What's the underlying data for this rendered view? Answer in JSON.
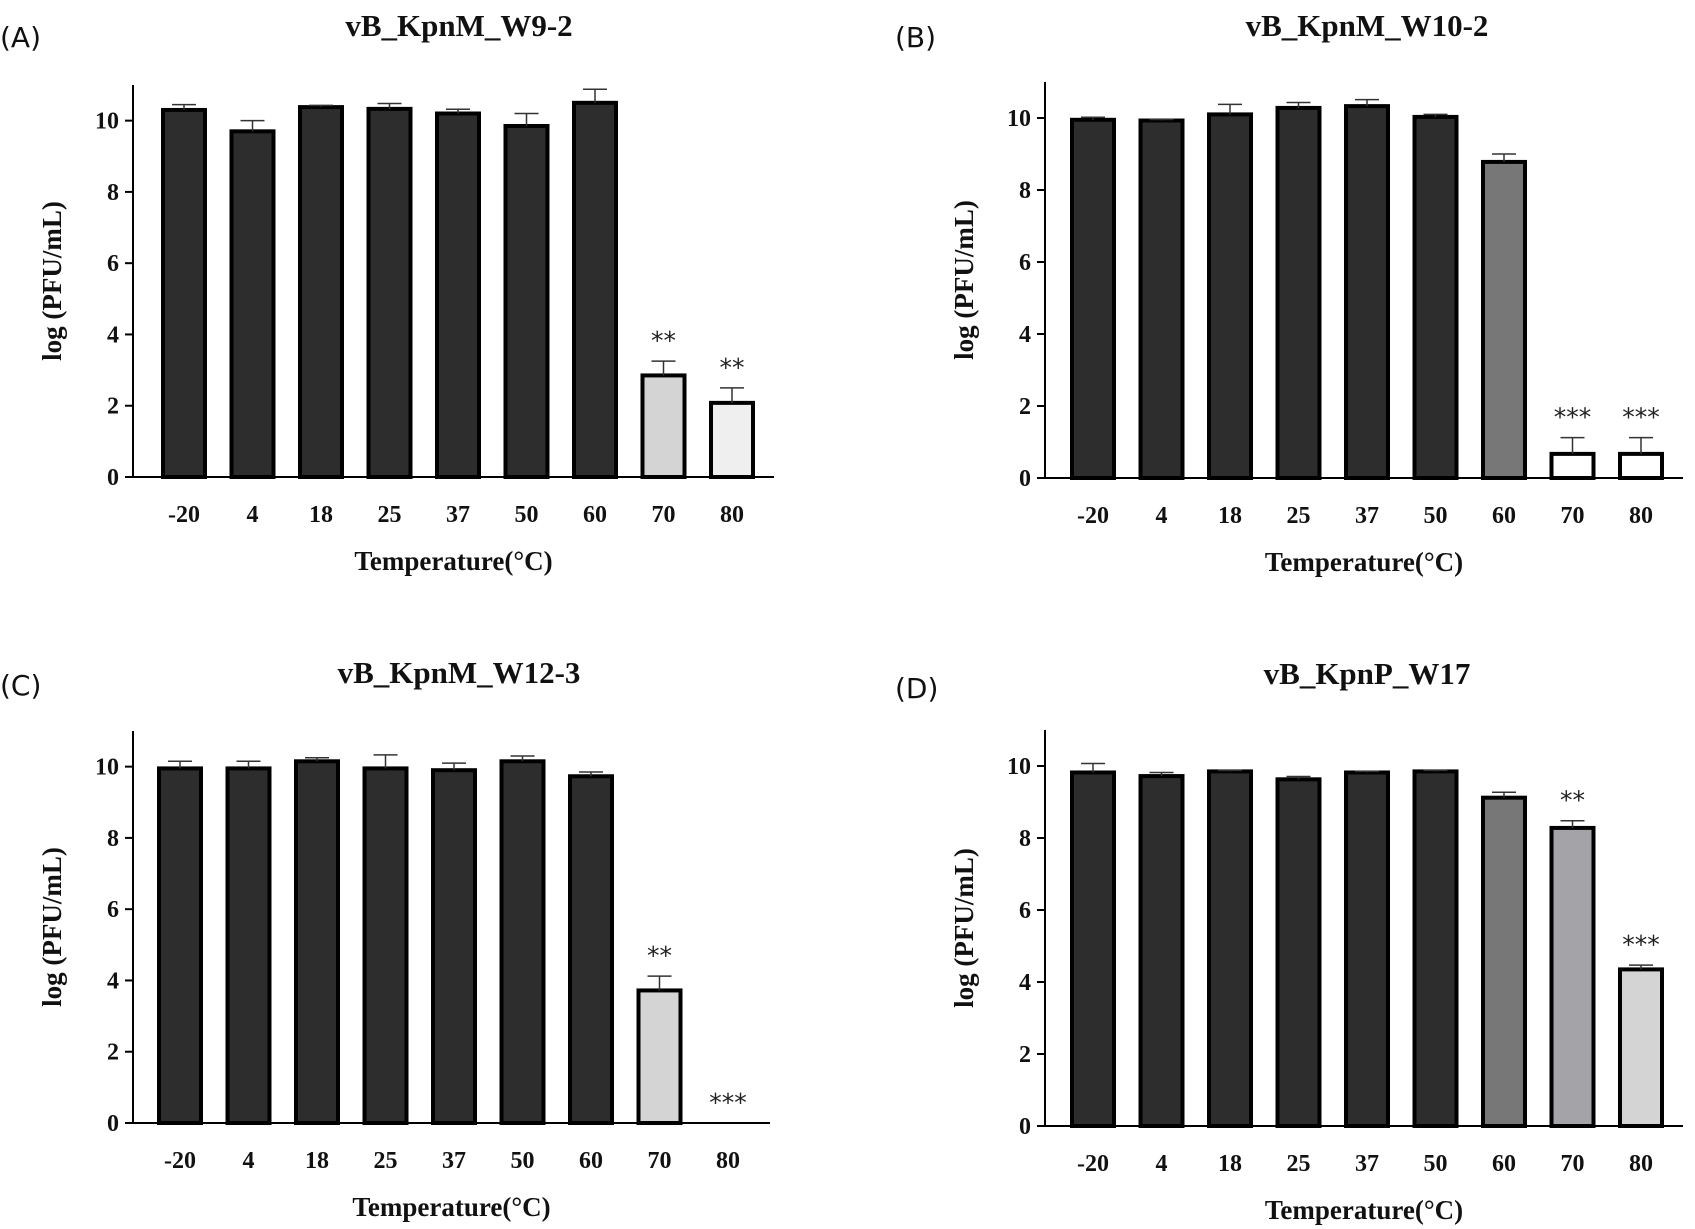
{
  "figure": {
    "palette": {
      "dark": "#2d2d2d",
      "mid": "#777777",
      "grey": "#a4a4a8",
      "light": "#d4d4d4",
      "lighter": "#efefef",
      "white": "#ffffff",
      "stroke": "#000000"
    }
  },
  "chart_data": [
    {
      "panel": "(A)",
      "type": "bar",
      "title": "vB_KpnM_W9-2",
      "xlabel": "Temperature(°C)",
      "ylabel": "log (PFU/mL)",
      "ylim": [
        0,
        11
      ],
      "yticks": [
        0,
        2,
        4,
        6,
        8,
        10
      ],
      "categories": [
        "-20",
        "4",
        "18",
        "25",
        "37",
        "50",
        "60",
        "70",
        "80"
      ],
      "values": [
        10.3,
        9.7,
        10.38,
        10.33,
        10.2,
        9.85,
        10.5,
        2.85,
        2.08
      ],
      "errors": [
        0.15,
        0.3,
        0.05,
        0.15,
        0.12,
        0.35,
        0.38,
        0.4,
        0.42
      ],
      "colors": [
        "dark",
        "dark",
        "dark",
        "dark",
        "dark",
        "dark",
        "dark",
        "light",
        "lighter"
      ],
      "significance": [
        "",
        "",
        "",
        "",
        "",
        "",
        "",
        "**",
        "**"
      ]
    },
    {
      "panel": "(B)",
      "type": "bar",
      "title": "vB_KpnM_W10-2",
      "xlabel": "Temperature(°C)",
      "ylabel": "log (PFU/mL)",
      "ylim": [
        0,
        11
      ],
      "yticks": [
        0,
        2,
        4,
        6,
        8,
        10
      ],
      "categories": [
        "-20",
        "4",
        "18",
        "25",
        "37",
        "50",
        "60",
        "70",
        "80"
      ],
      "values": [
        9.95,
        9.93,
        10.1,
        10.28,
        10.33,
        10.03,
        8.78,
        0.67,
        0.67
      ],
      "errors": [
        0.07,
        0.03,
        0.28,
        0.15,
        0.18,
        0.07,
        0.22,
        0.45,
        0.45
      ],
      "colors": [
        "dark",
        "dark",
        "dark",
        "dark",
        "dark",
        "dark",
        "mid",
        "white",
        "white"
      ],
      "significance": [
        "",
        "",
        "",
        "",
        "",
        "",
        "",
        "***",
        "***"
      ]
    },
    {
      "panel": "(C)",
      "type": "bar",
      "title": "vB_KpnM_W12-3",
      "xlabel": "Temperature(°C)",
      "ylabel": "log (PFU/mL)",
      "ylim": [
        0,
        11
      ],
      "yticks": [
        0,
        2,
        4,
        6,
        8,
        10
      ],
      "categories": [
        "-20",
        "4",
        "18",
        "25",
        "37",
        "50",
        "60",
        "70",
        "80"
      ],
      "values": [
        9.95,
        9.95,
        10.15,
        9.95,
        9.9,
        10.15,
        9.73,
        3.72,
        0
      ],
      "errors": [
        0.2,
        0.2,
        0.1,
        0.38,
        0.2,
        0.15,
        0.12,
        0.4,
        0
      ],
      "colors": [
        "dark",
        "dark",
        "dark",
        "dark",
        "dark",
        "dark",
        "dark",
        "light",
        "white"
      ],
      "significance": [
        "",
        "",
        "",
        "",
        "",
        "",
        "",
        "**",
        "***"
      ]
    },
    {
      "panel": "(D)",
      "type": "bar",
      "title": "vB_KpnP_W17",
      "xlabel": "Temperature(°C)",
      "ylabel": "log (PFU/mL)",
      "ylim": [
        0,
        11
      ],
      "yticks": [
        0,
        2,
        4,
        6,
        8,
        10
      ],
      "categories": [
        "-20",
        "4",
        "18",
        "25",
        "37",
        "50",
        "60",
        "70",
        "80"
      ],
      "values": [
        9.82,
        9.72,
        9.85,
        9.63,
        9.82,
        9.85,
        9.12,
        8.28,
        4.35
      ],
      "errors": [
        0.25,
        0.1,
        0.03,
        0.08,
        0.03,
        0.03,
        0.15,
        0.2,
        0.12
      ],
      "colors": [
        "dark",
        "dark",
        "dark",
        "dark",
        "dark",
        "dark",
        "mid",
        "grey",
        "light"
      ],
      "significance": [
        "",
        "",
        "",
        "",
        "",
        "",
        "",
        "**",
        "***"
      ]
    }
  ]
}
